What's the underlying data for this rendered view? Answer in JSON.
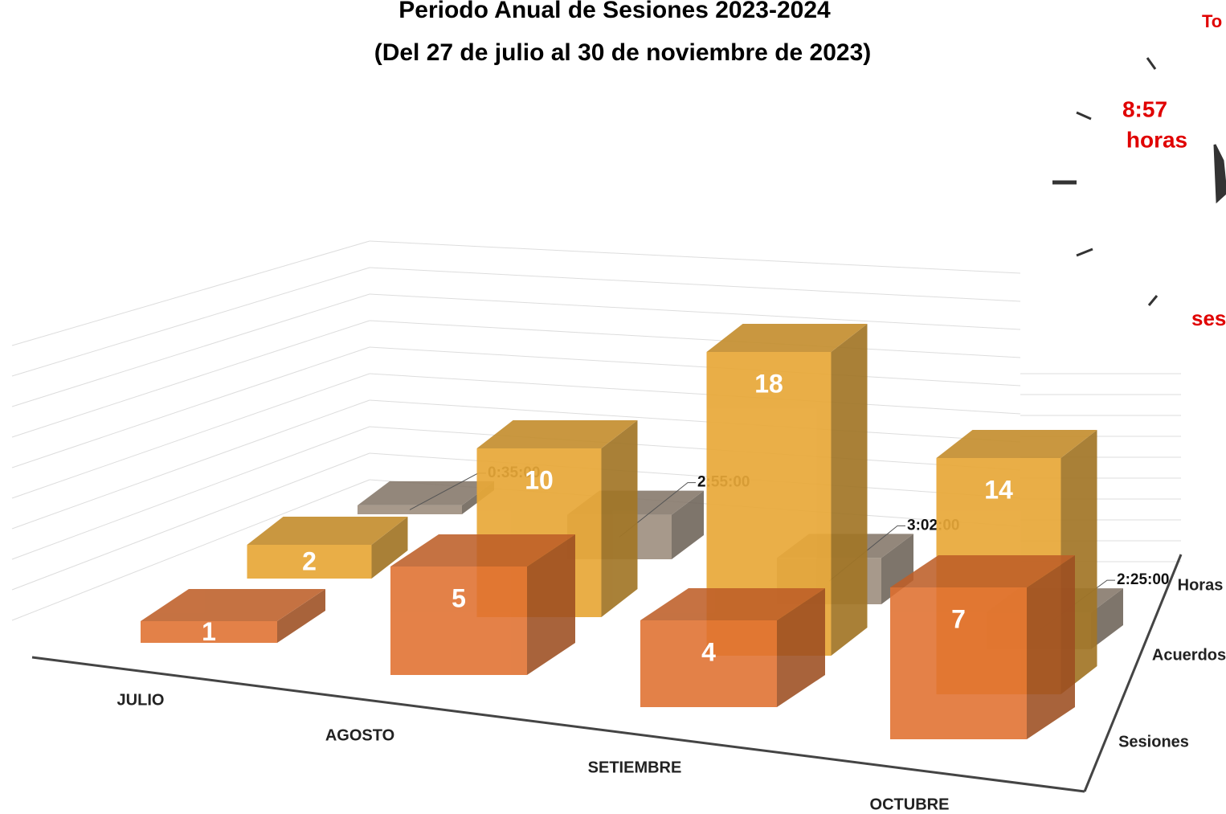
{
  "chart_data": {
    "type": "bar3d",
    "title": "Periodo Anual de Sesiones 2023-2024",
    "subtitle": "(Del 27 de julio al 30 de noviembre de 2023)",
    "categories": [
      "JULIO",
      "AGOSTO",
      "SETIEMBRE",
      "OCTUBRE"
    ],
    "series": [
      {
        "name": "Sesiones",
        "color": "#e0702f",
        "values": [
          1,
          5,
          4,
          7
        ]
      },
      {
        "name": "Acuerdos",
        "color": "#e8a838",
        "values": [
          2,
          10,
          18,
          14
        ]
      },
      {
        "name": "Horas",
        "color": "#9c8c7c",
        "values": [
          0.5833,
          2.9167,
          3.0333,
          2.4167
        ],
        "value_labels": [
          "0:35:00",
          "2:55:00",
          "3:02:00",
          "2:25:00"
        ]
      }
    ],
    "annotations": [
      "To",
      "8:57",
      "horas",
      "ses"
    ]
  }
}
